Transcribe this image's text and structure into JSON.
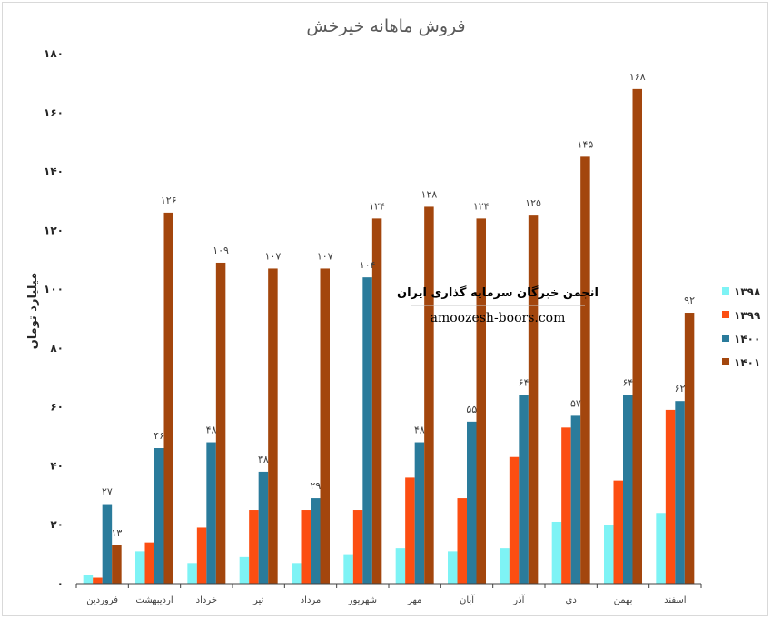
{
  "watermark": {
    "title": "انجمن خبرگان سرمایه گذاری ایران",
    "url": "amoozesh-boors.com"
  },
  "chart_data": {
    "type": "bar",
    "title": "فروش ماهانه خیرخش",
    "xlabel": "",
    "ylabel": "میلیارد تومان",
    "ylim": [
      0,
      180
    ],
    "yticks": [
      0,
      20,
      40,
      60,
      80,
      100,
      120,
      140,
      160,
      180
    ],
    "ytick_labels": [
      "۰",
      "۲۰",
      "۴۰",
      "۶۰",
      "۸۰",
      "۱۰۰",
      "۱۲۰",
      "۱۴۰",
      "۱۶۰",
      "۱۸۰"
    ],
    "categories": [
      "فروردین",
      "اردیبهشت",
      "خرداد",
      "تیر",
      "مرداد",
      "شهریور",
      "مهر",
      "آبان",
      "آذر",
      "دی",
      "بهمن",
      "اسفند"
    ],
    "legend_position": "right",
    "grid": false,
    "series": [
      {
        "name": "۱۳۹۸",
        "color": "#7ef3f5",
        "values": [
          3,
          11,
          7,
          9,
          7,
          10,
          12,
          11,
          12,
          21,
          20,
          24
        ],
        "labels": [
          null,
          null,
          null,
          null,
          null,
          null,
          null,
          null,
          null,
          null,
          null,
          null
        ]
      },
      {
        "name": "۱۳۹۹",
        "color": "#fc4e12",
        "values": [
          2,
          14,
          19,
          25,
          25,
          25,
          36,
          29,
          43,
          53,
          35,
          59
        ],
        "labels": [
          null,
          null,
          null,
          null,
          null,
          null,
          null,
          null,
          null,
          null,
          null,
          null
        ]
      },
      {
        "name": "۱۴۰۰",
        "color": "#2a7b9b",
        "values": [
          27,
          46,
          48,
          38,
          29,
          104,
          48,
          55,
          64,
          57,
          64,
          62
        ],
        "labels": [
          "۲۷",
          "۴۶",
          "۴۸",
          "۳۸",
          "۲۹",
          "۱۰۴",
          "۴۸",
          "۵۵",
          "۶۴",
          "۵۷",
          "۶۴",
          "۶۲"
        ]
      },
      {
        "name": "۱۴۰۱",
        "color": "#a3460d",
        "values": [
          13,
          126,
          109,
          107,
          107,
          124,
          128,
          124,
          125,
          145,
          168,
          92
        ],
        "labels": [
          "۱۳",
          "۱۲۶",
          "۱۰۹",
          "۱۰۷",
          "۱۰۷",
          "۱۲۴",
          "۱۲۸",
          "۱۲۴",
          "۱۲۵",
          "۱۴۵",
          "۱۶۸",
          "۹۲"
        ]
      }
    ]
  }
}
